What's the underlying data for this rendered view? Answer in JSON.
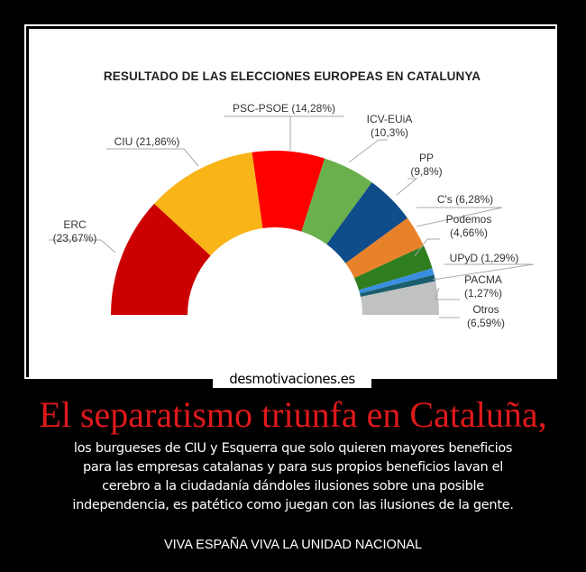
{
  "poster": {
    "headline": "El separatismo triunfa en Cataluña,",
    "body_lines": [
      "los burgueses de CIU y Esquerra que solo quieren mayores beneficios",
      "para las empresas catalanas y para sus propios beneficios lavan el",
      "cerebro a la ciudadanía dándoles ilusiones sobre una posible",
      "independencia, es patético como juegan con las ilusiones de la gente."
    ],
    "footer": "VIVA ESPAÑA VIVA LA UNIDAD NACIONAL",
    "brand": "desmotivaciones.es",
    "headline_color": "#e0191b"
  },
  "chart_data": {
    "type": "pie",
    "subtype": "half-donut",
    "title": "RESULTADO DE LAS ELECCIONES EUROPEAS EN CATALUNYA",
    "categories": [
      "ERC",
      "CIU",
      "PSC-PSOE",
      "ICV-EUiA",
      "PP",
      "C's",
      "Podemos",
      "UPyD",
      "PACMA",
      "Otros"
    ],
    "values": [
      23.67,
      21.86,
      14.28,
      10.3,
      9.8,
      6.28,
      4.66,
      1.29,
      1.27,
      6.59
    ],
    "labels": [
      "ERC (23,67%)",
      "CIU (21,86%)",
      "PSC-PSOE (14,28%)",
      "ICV-EUiA (10,3%)",
      "PP (9,8%)",
      "C's (6,28%)",
      "Podemos (4,66%)",
      "UPyD (1,29%)",
      "PACMA (1,27%)",
      "Otros (6,59%)"
    ],
    "colors": [
      "#cc0000",
      "#f9b418",
      "#ff0000",
      "#6ab04c",
      "#0f4c8a",
      "#e8822a",
      "#2e7d1f",
      "#3a8ee0",
      "#1a5e6e",
      "#c0c2c1"
    ],
    "unit": "%",
    "legend": "none (callout labels)"
  },
  "labels": {
    "erc": [
      "ERC",
      "(23,67%)"
    ],
    "ciu": [
      "CIU (21,86%)"
    ],
    "psc": [
      "PSC-PSOE (14,28%)"
    ],
    "icv": [
      "ICV-EUiA",
      "(10,3%)"
    ],
    "pp": [
      "PP",
      "(9,8%)"
    ],
    "cs": [
      "C's (6,28%)"
    ],
    "podemos": [
      "Podemos",
      "(4,66%)"
    ],
    "upyd": [
      "UPyD (1,29%)"
    ],
    "pacma": [
      "PACMA",
      "(1,27%)"
    ],
    "otros": [
      "Otros",
      "(6,59%)"
    ]
  }
}
